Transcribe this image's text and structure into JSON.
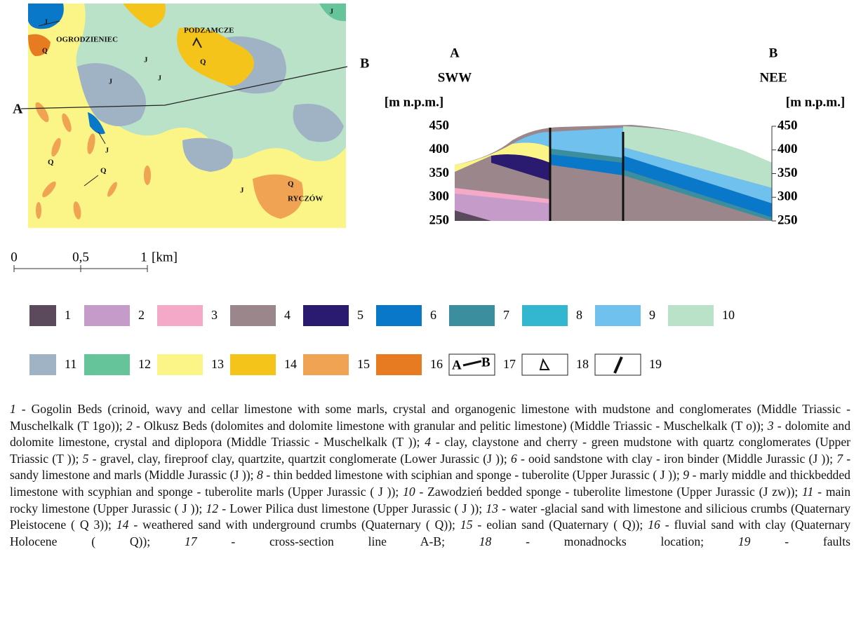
{
  "map": {
    "labels": [
      "OGRODZIENIEC",
      "PODZAMCZE",
      "RYCZÓW",
      "A",
      "B",
      "Q",
      "Q",
      "Q",
      "Q",
      "Q",
      "J",
      "J",
      "J",
      "J",
      "J",
      "J",
      "J"
    ]
  },
  "cross_section": {
    "left_point": "A",
    "left_direction": "SWW",
    "left_unit": "[m n.p.m.]",
    "right_point": "B",
    "right_direction": "NEE",
    "right_unit": "[m n.p.m.]",
    "ylim": [
      250,
      450
    ],
    "yticks": [
      250,
      300,
      350,
      400,
      450
    ]
  },
  "scale_bar": {
    "labels": [
      "0",
      "0,5",
      "1",
      "[km]"
    ]
  },
  "legend": {
    "items": [
      {
        "label": "1",
        "color": "#5b4a5c"
      },
      {
        "label": "2",
        "color": "#c59bc9"
      },
      {
        "label": "3",
        "color": "#f4a9c9"
      },
      {
        "label": "4",
        "color": "#9b878b"
      },
      {
        "label": "5",
        "color": "#2a1a70"
      },
      {
        "label": "6",
        "color": "#0a78c8"
      },
      {
        "label": "7",
        "color": "#3a8e9e"
      },
      {
        "label": "8",
        "color": "#33b6d0"
      },
      {
        "label": "9",
        "color": "#70c1ee"
      },
      {
        "label": "10",
        "color": "#b9e2c9"
      },
      {
        "label": "11",
        "color": "#9fb3c4"
      },
      {
        "label": "12",
        "color": "#66c49b"
      },
      {
        "label": "13",
        "color": "#fbf587"
      },
      {
        "label": "14",
        "color": "#f4c41a"
      },
      {
        "label": "15",
        "color": "#f0a353"
      },
      {
        "label": "16",
        "color": "#e77b22"
      },
      {
        "label": "17",
        "symbol": [
          "A",
          "B"
        ]
      },
      {
        "label": "18"
      },
      {
        "label": "19"
      }
    ]
  },
  "caption": {
    "entries": [
      {
        "number": "1",
        "text": "- Gogolin Beds (crinoid, wavy and cellar limestone with some marls, crystal and organogenic limestone with mudstone and conglomerates (Middle Triassic - Muschelkalk (T 1go));"
      },
      {
        "number": "2",
        "text": "- Olkusz Beds (dolomites and dolomite limestone with granular and pelitic limestone) (Middle Triassic - Muschelkalk (T o));"
      },
      {
        "number": "3",
        "text": "- dolomite and dolomite limestone, crystal and diplopora (Middle Triassic - Muschelkalk (T ));"
      },
      {
        "number": "4",
        "text": "- clay, claystone and cherry - green mudstone with quartz conglomerates (Upper Triassic (T ));"
      },
      {
        "number": "5",
        "text": "- gravel, clay, fireproof clay, quartzite, quartzit conglomerate (Lower Jurassic (J ));"
      },
      {
        "number": "6",
        "text": "- ooid sandstone with clay - iron binder (Middle Jurassic (J ));"
      },
      {
        "number": "7",
        "text": "- sandy limestone and marls (Middle Jurassic (J ));"
      },
      {
        "number": "8",
        "text": "- thin bedded limestone with sciphian and sponge - tuberolite (Upper Jurassic ( J ));"
      },
      {
        "number": "9",
        "text": "- marly middle and thickbedded limestone with scyphian and sponge - tuberolite marls (Upper Jurassic ( J ));"
      },
      {
        "number": "10",
        "text": "- Zawodzień bedded sponge - tuberolite limestone (Upper Jurassic (J zw));"
      },
      {
        "number": "11",
        "text": "- main rocky limestone (Upper Jurassic ( J ));"
      },
      {
        "number": "12",
        "text": "- Lower Pilica dust limestone (Upper Jurassic ( J ));"
      },
      {
        "number": "13",
        "text": "- water -glacial sand with limestone and silicious crumbs (Quaternary Pleistocene ( Q 3));"
      },
      {
        "number": "14",
        "text": "- weathered sand with underground crumbs (Quaternary ( Q));"
      },
      {
        "number": "15",
        "text": "- eolian sand (Quaternary ( Q));"
      },
      {
        "number": "16",
        "text": "- fluvial sand with clay (Quaternary Holocene ( Q));"
      },
      {
        "number": "17",
        "text": "- cross-section line A-B;"
      },
      {
        "number": "18",
        "text": "- monadnocks location;"
      },
      {
        "number": "19",
        "text": "- faults"
      }
    ]
  }
}
